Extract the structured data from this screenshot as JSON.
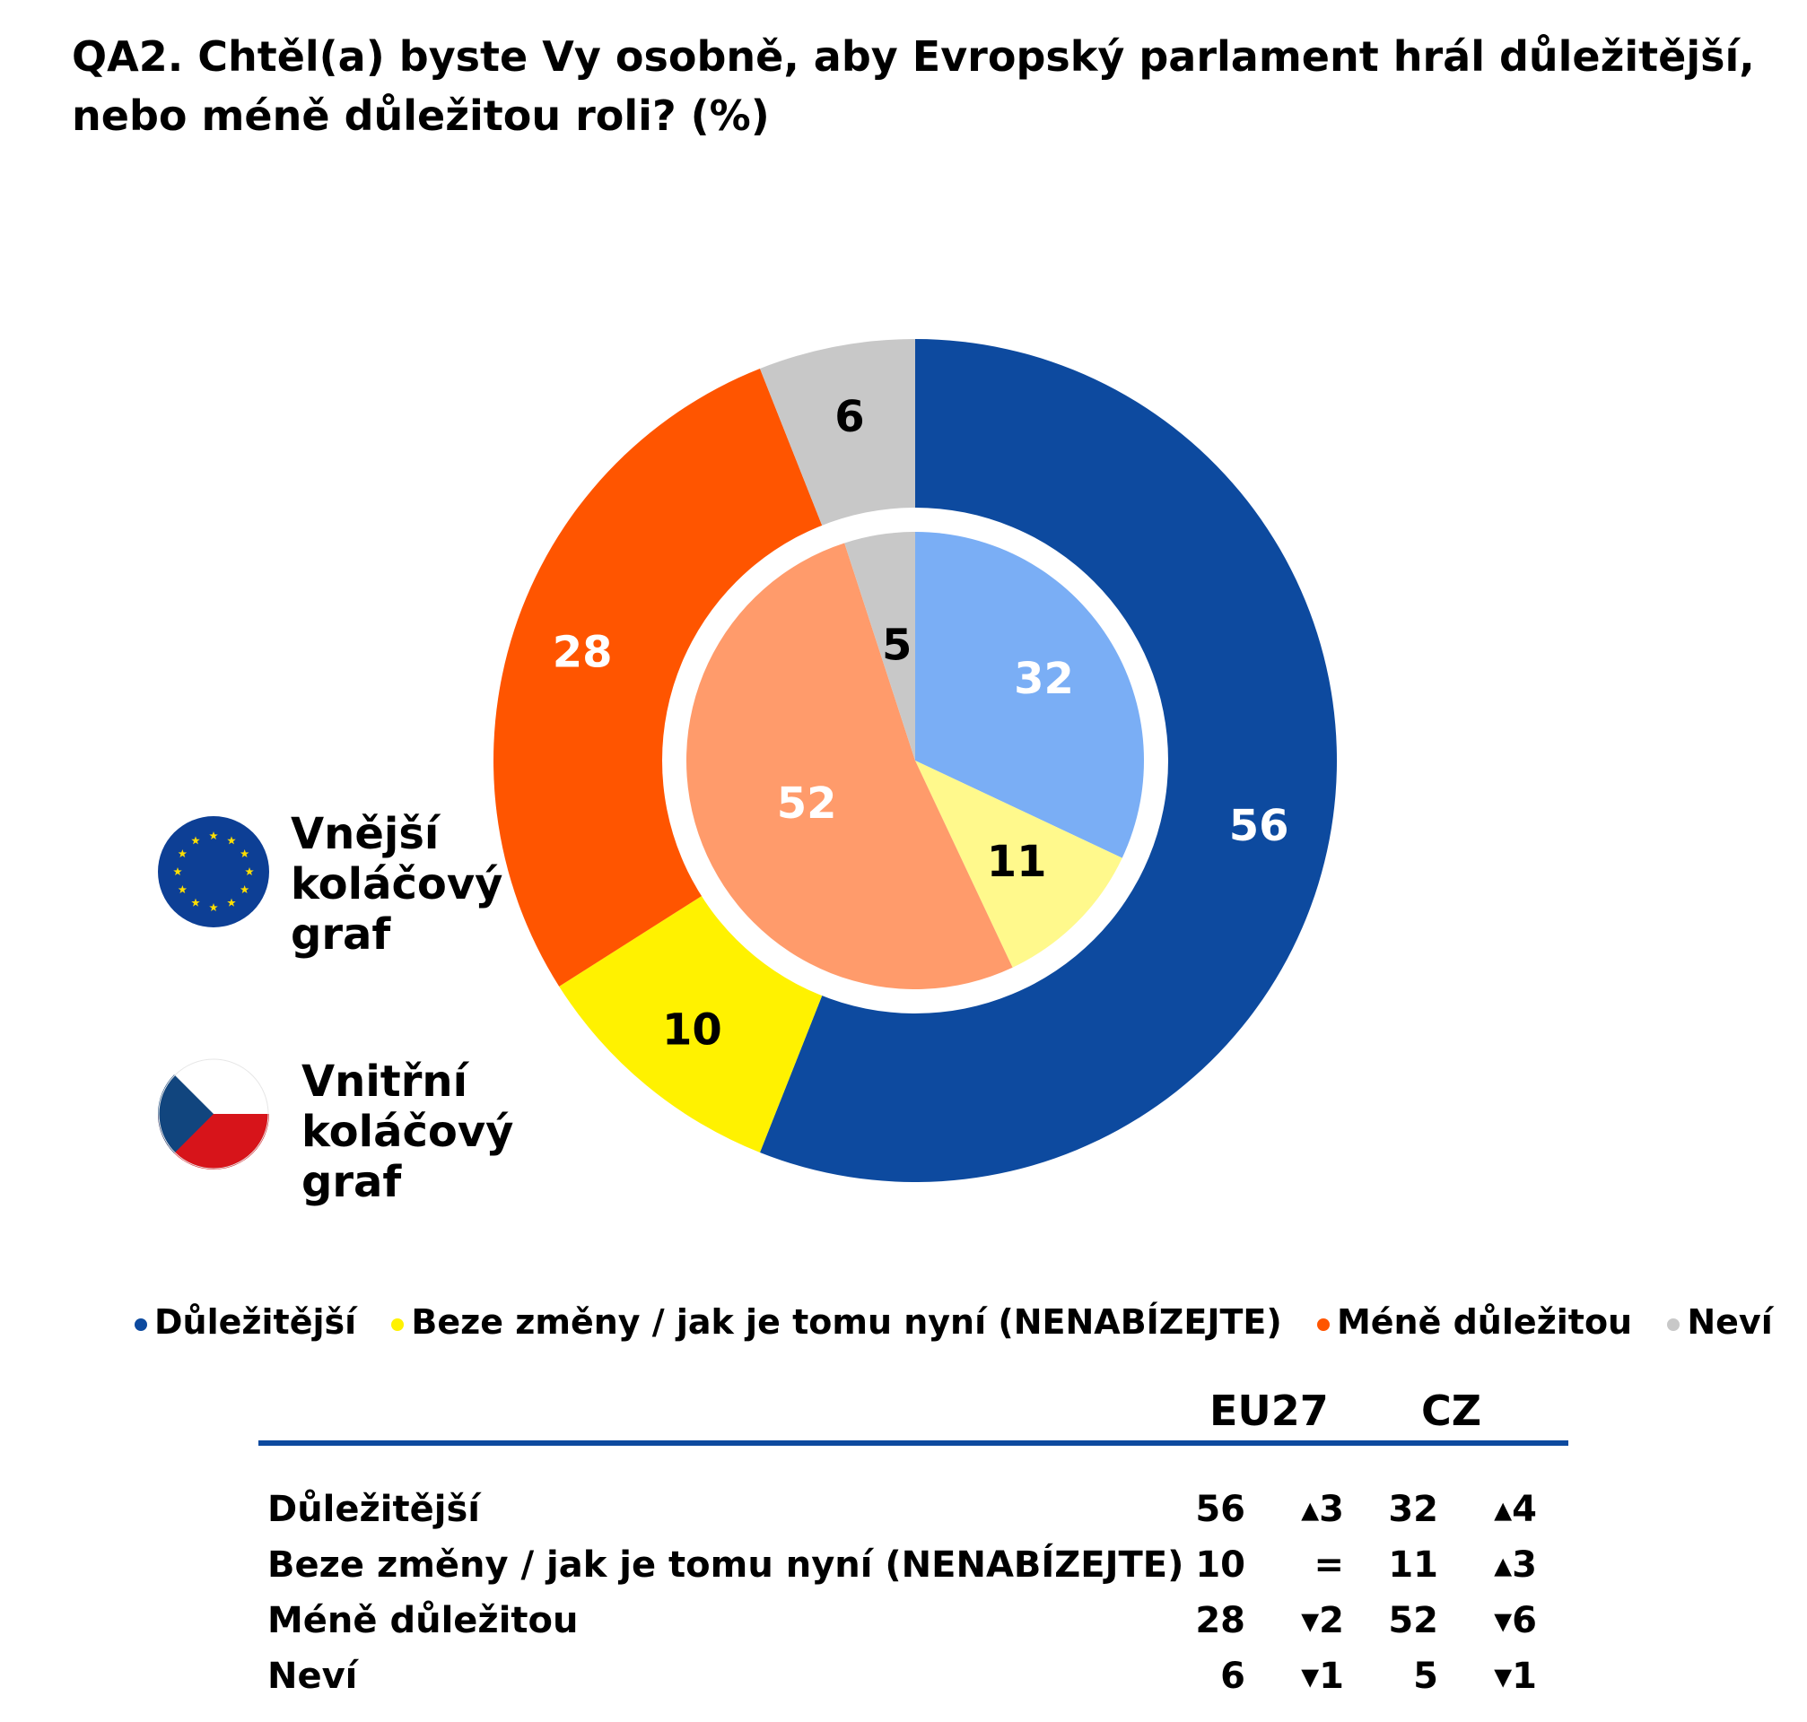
{
  "title": {
    "line1": "QA2. Chtěl(a) byste Vy osobně, aby Evropský parlament hrál důležitější,",
    "line2": "nebo méně důležitou roli? (%)"
  },
  "key": {
    "outer": {
      "line1": "Vnější",
      "line2": "koláčový",
      "line3": "graf",
      "icon": "eu-flag-icon"
    },
    "inner": {
      "line1": "Vnitřní",
      "line2": "koláčový",
      "line3": "graf",
      "icon": "czech-flag-icon"
    }
  },
  "chart_data": {
    "type": "pie",
    "categories": [
      "Důležitější",
      "Beze změny / jak je tomu nyní (NENABÍZEJTE)",
      "Méně důležitou",
      "Neví"
    ],
    "legend_position": "bottom",
    "series": [
      {
        "name": "Vnější koláčový graf",
        "values": [
          56,
          10,
          28,
          6
        ],
        "colors": [
          "#0d4a9f",
          "#fff200",
          "#ff5500",
          "#c8c8c8"
        ],
        "label_colors": [
          "#ffffff",
          "#000000",
          "#ffffff",
          "#000000"
        ]
      },
      {
        "name": "Vnitřní koláčový graf",
        "values": [
          32,
          11,
          52,
          5
        ],
        "colors": [
          "#7aaef5",
          "#fff98c",
          "#ff9b6b",
          "#c8c8c8"
        ],
        "label_colors": [
          "#ffffff",
          "#000000",
          "#ffffff",
          "#000000"
        ]
      }
    ]
  },
  "legend": [
    {
      "label": "Důležitější",
      "color": "#0d4a9f"
    },
    {
      "label": "Beze změny / jak je tomu nyní (NENABÍZEJTE)",
      "color": "#fff200"
    },
    {
      "label": "Méně důležitou",
      "color": "#ff5500"
    },
    {
      "label": "Neví",
      "color": "#c8c8c8"
    }
  ],
  "table": {
    "col_eu": "EU27",
    "col_cz": "CZ",
    "rows": [
      {
        "label": "Důležitější",
        "eu": "56",
        "eu_change": "▴3",
        "cz": "32",
        "cz_change": "▴4"
      },
      {
        "label": "Beze změny / jak je tomu nyní (NENABÍZEJTE)",
        "eu": "10",
        "eu_change": "=",
        "cz": "11",
        "cz_change": "▴3"
      },
      {
        "label": "Méně důležitou",
        "eu": "28",
        "eu_change": "▾2",
        "cz": "52",
        "cz_change": "▾6"
      },
      {
        "label": "Neví",
        "eu": "6",
        "eu_change": "▾1",
        "cz": "5",
        "cz_change": "▾1"
      }
    ]
  }
}
